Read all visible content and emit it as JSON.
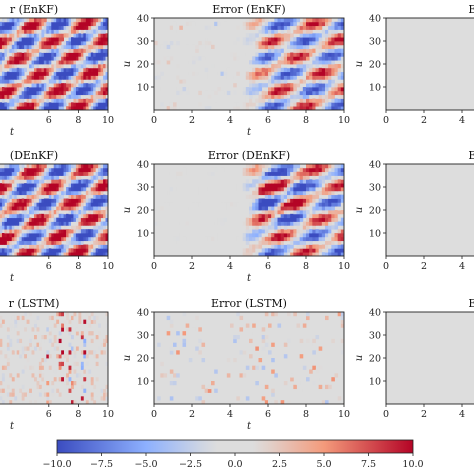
{
  "colors": {
    "neg": "#3b4cc0",
    "mid": "#dddddd",
    "pos": "#b40426"
  },
  "chart_data": {
    "type": "heatmap",
    "colormap": "coolwarm",
    "colorbar": {
      "range": [
        -10.0,
        10.0
      ],
      "tick_labels": [
        "−10.0",
        "−7.5",
        "−5.0",
        "−2.5",
        "0.0",
        "2.5",
        "5.0",
        "7.5",
        "10.0"
      ],
      "tick_values": [
        -10,
        -7.5,
        -5,
        -2.5,
        0,
        2.5,
        5,
        7.5,
        10
      ]
    },
    "x_label": "t",
    "y_label": "u",
    "panels": [
      {
        "row": 0,
        "col": 0,
        "title": "r (EnKF)",
        "x_ticks": [
          "6",
          "8",
          "10"
        ],
        "y_ticks": [],
        "pattern": "dense"
      },
      {
        "row": 0,
        "col": 1,
        "title": "Error (EnKF)",
        "x_ticks": [
          "0",
          "2",
          "4",
          "6",
          "8",
          "10"
        ],
        "y_ticks": [
          "10",
          "20",
          "30",
          "40"
        ],
        "pattern": "late-mid"
      },
      {
        "row": 0,
        "col": 2,
        "title": "Erro",
        "x_ticks": [
          "0",
          "2",
          "4"
        ],
        "y_ticks": [
          "10",
          "20",
          "30",
          "40"
        ],
        "pattern": "blank"
      },
      {
        "row": 1,
        "col": 0,
        "title": "(DEnKF)",
        "x_ticks": [
          "6",
          "8",
          "10"
        ],
        "y_ticks": [],
        "pattern": "dense"
      },
      {
        "row": 1,
        "col": 1,
        "title": "Error (DEnKF)",
        "x_ticks": [
          "0",
          "2",
          "4",
          "6",
          "8",
          "10"
        ],
        "y_ticks": [
          "10",
          "20",
          "30",
          "40"
        ],
        "pattern": "late-strong"
      },
      {
        "row": 1,
        "col": 2,
        "title": "Erro",
        "x_ticks": [
          "0",
          "2",
          "4"
        ],
        "y_ticks": [
          "10",
          "20",
          "30",
          "40"
        ],
        "pattern": "blank"
      },
      {
        "row": 2,
        "col": 0,
        "title": "r (LSTM)",
        "x_ticks": [
          "6",
          "8",
          "10"
        ],
        "y_ticks": [],
        "pattern": "stripes"
      },
      {
        "row": 2,
        "col": 1,
        "title": "Error (LSTM)",
        "x_ticks": [
          "0",
          "2",
          "4",
          "6",
          "8",
          "10"
        ],
        "y_ticks": [
          "10",
          "20",
          "30",
          "40"
        ],
        "pattern": "sparse"
      },
      {
        "row": 2,
        "col": 2,
        "title": "Erro",
        "x_ticks": [
          "0",
          "2",
          "4"
        ],
        "y_ticks": [
          "10",
          "20",
          "30",
          "40"
        ],
        "pattern": "blank"
      }
    ]
  }
}
